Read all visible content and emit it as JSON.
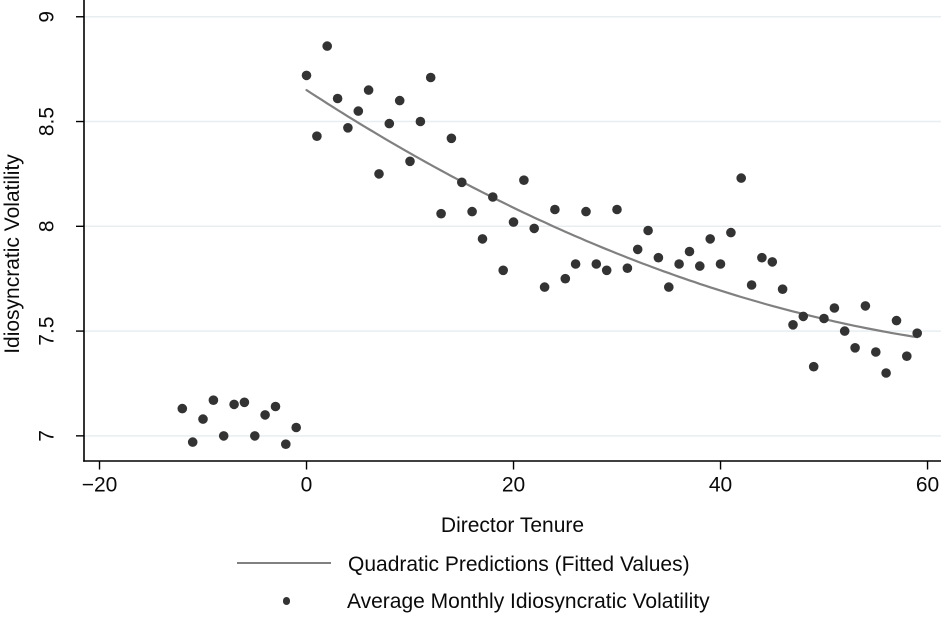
{
  "chart_data": {
    "type": "scatter",
    "title": "",
    "xlabel": "Director Tenure",
    "ylabel": "Idiosyncratic Volatility",
    "xlim": [
      -21.5,
      61.3
    ],
    "ylim": [
      6.88,
      9.08
    ],
    "x_ticks": [
      -20,
      0,
      20,
      40,
      60
    ],
    "x_tick_labels": [
      "−20",
      "0",
      "20",
      "40",
      "60"
    ],
    "y_ticks": [
      7,
      7.5,
      8,
      8.5,
      9
    ],
    "y_tick_labels": [
      "7",
      "7.5",
      "8",
      "8.5",
      "9"
    ],
    "grid": "horizontal-only",
    "legend_position": "bottom-center",
    "series": [
      {
        "name": "Quadratic Predictions (Fitted Values)",
        "type": "line",
        "color": "#808080",
        "fit": {
          "form": "quadratic",
          "a": 8.65,
          "b": -0.0322,
          "c": 0.000207,
          "x_range": [
            0,
            59
          ]
        }
      },
      {
        "name": "Average Monthly Idiosyncratic Volatility",
        "type": "scatter",
        "color": "#333333",
        "points": [
          [
            -12,
            7.13
          ],
          [
            -11,
            6.97
          ],
          [
            -10,
            7.08
          ],
          [
            -9,
            7.17
          ],
          [
            -8,
            7.0
          ],
          [
            -7,
            7.15
          ],
          [
            -6,
            7.16
          ],
          [
            -5,
            7.0
          ],
          [
            -4,
            7.1
          ],
          [
            -3,
            7.14
          ],
          [
            -2,
            6.96
          ],
          [
            -1,
            7.04
          ],
          [
            0,
            8.72
          ],
          [
            1,
            8.43
          ],
          [
            2,
            8.86
          ],
          [
            3,
            8.61
          ],
          [
            4,
            8.47
          ],
          [
            5,
            8.55
          ],
          [
            6,
            8.65
          ],
          [
            7,
            8.25
          ],
          [
            8,
            8.49
          ],
          [
            9,
            8.6
          ],
          [
            10,
            8.31
          ],
          [
            11,
            8.5
          ],
          [
            12,
            8.71
          ],
          [
            13,
            8.06
          ],
          [
            14,
            8.42
          ],
          [
            15,
            8.21
          ],
          [
            16,
            8.07
          ],
          [
            17,
            7.94
          ],
          [
            18,
            8.14
          ],
          [
            19,
            7.79
          ],
          [
            20,
            8.02
          ],
          [
            21,
            8.22
          ],
          [
            22,
            7.99
          ],
          [
            23,
            7.71
          ],
          [
            24,
            8.08
          ],
          [
            25,
            7.75
          ],
          [
            26,
            7.82
          ],
          [
            27,
            8.07
          ],
          [
            28,
            7.82
          ],
          [
            29,
            7.79
          ],
          [
            30,
            8.08
          ],
          [
            31,
            7.8
          ],
          [
            32,
            7.89
          ],
          [
            33,
            7.98
          ],
          [
            34,
            7.85
          ],
          [
            35,
            7.71
          ],
          [
            36,
            7.82
          ],
          [
            37,
            7.88
          ],
          [
            38,
            7.81
          ],
          [
            39,
            7.94
          ],
          [
            40,
            7.82
          ],
          [
            41,
            7.97
          ],
          [
            42,
            8.23
          ],
          [
            43,
            7.72
          ],
          [
            44,
            7.85
          ],
          [
            45,
            7.83
          ],
          [
            46,
            7.7
          ],
          [
            47,
            7.53
          ],
          [
            48,
            7.57
          ],
          [
            49,
            7.33
          ],
          [
            50,
            7.56
          ],
          [
            51,
            7.61
          ],
          [
            52,
            7.5
          ],
          [
            53,
            7.42
          ],
          [
            54,
            7.62
          ],
          [
            55,
            7.4
          ],
          [
            56,
            7.3
          ],
          [
            57,
            7.55
          ],
          [
            58,
            7.38
          ],
          [
            59,
            7.49
          ]
        ]
      }
    ],
    "colors": {
      "grid": "#e8eef0",
      "axis": "#000000",
      "text": "#0a0a0a",
      "fitted_line": "#808080",
      "scatter_dot": "#333333"
    }
  },
  "legend": {
    "line_label": "Quadratic Predictions (Fitted Values)",
    "dot_label": "Average Monthly Idiosyncratic Volatility"
  },
  "axes": {
    "x_title": "Director Tenure",
    "y_title": "Idiosyncratic Volatility"
  }
}
